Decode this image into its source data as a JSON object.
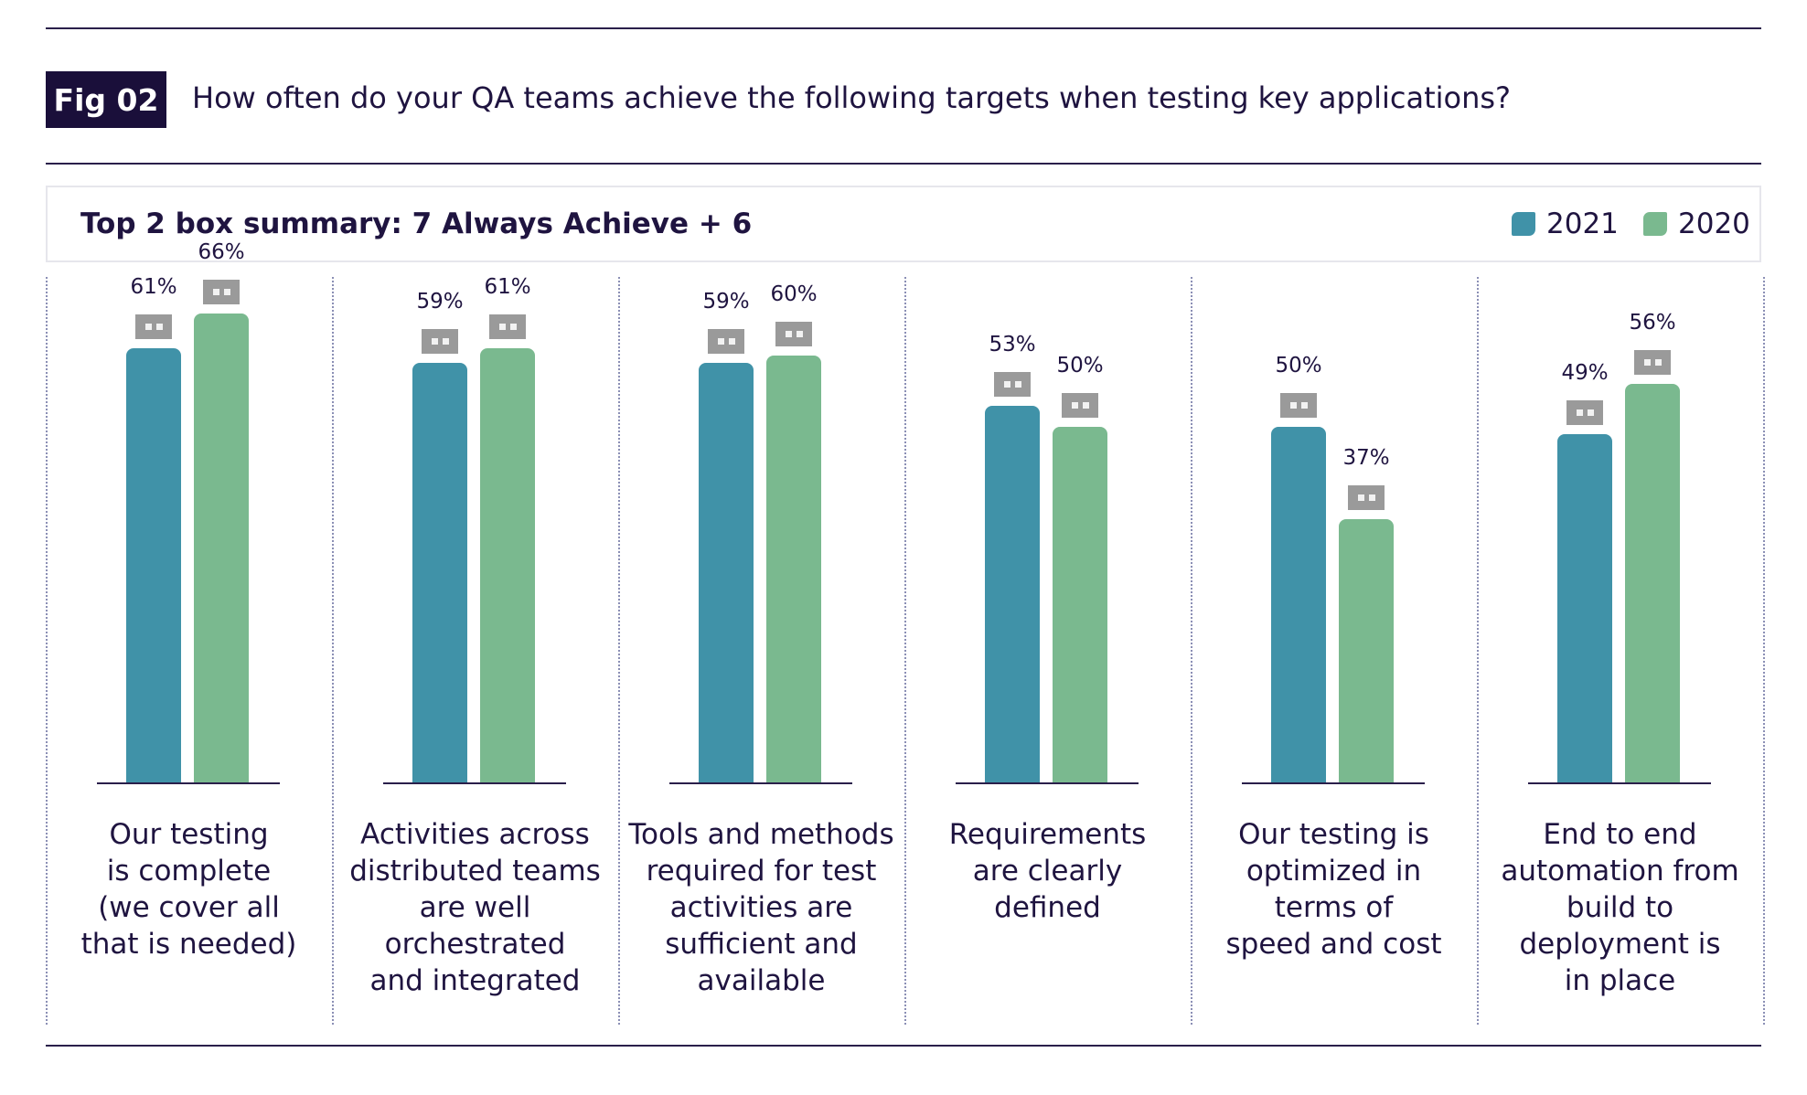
{
  "header": {
    "fig_label": "Fig 02",
    "question": "How often do your QA teams achieve the following targets when testing key applications?"
  },
  "summary": {
    "title": "Top 2 box summary: 7 Always Achieve + 6"
  },
  "colors": {
    "series_2021": "#4092a8",
    "series_2020": "#7ab98f"
  },
  "chart_data": {
    "type": "bar",
    "title": "Top 2 box summary: 7 Always Achieve + 6",
    "categories": [
      "Our testing\nis complete\n(we cover all\nthat is needed)",
      "Activities across\ndistributed teams\nare well\norchestrated\nand integrated",
      "Tools and methods\nrequired for test\nactivities are\nsufficient and\navailable",
      "Requirements\nare clearly\ndefined",
      "Our testing is\noptimized in\nterms of\nspeed and cost",
      "End to end\nautomation from\nbuild to\ndeployment is\nin place"
    ],
    "series": [
      {
        "name": "2021",
        "values": [
          61,
          59,
          59,
          53,
          50,
          49
        ],
        "labels": [
          "61%",
          "59%",
          "59%",
          "53%",
          "50%",
          "49%"
        ]
      },
      {
        "name": "2020",
        "values": [
          66,
          61,
          60,
          50,
          37,
          56
        ],
        "labels": [
          "66%",
          "61%",
          "60%",
          "50%",
          "37%",
          "56%"
        ]
      }
    ],
    "ylim": [
      0,
      100
    ],
    "legend_position": "top-right",
    "grid": false
  }
}
